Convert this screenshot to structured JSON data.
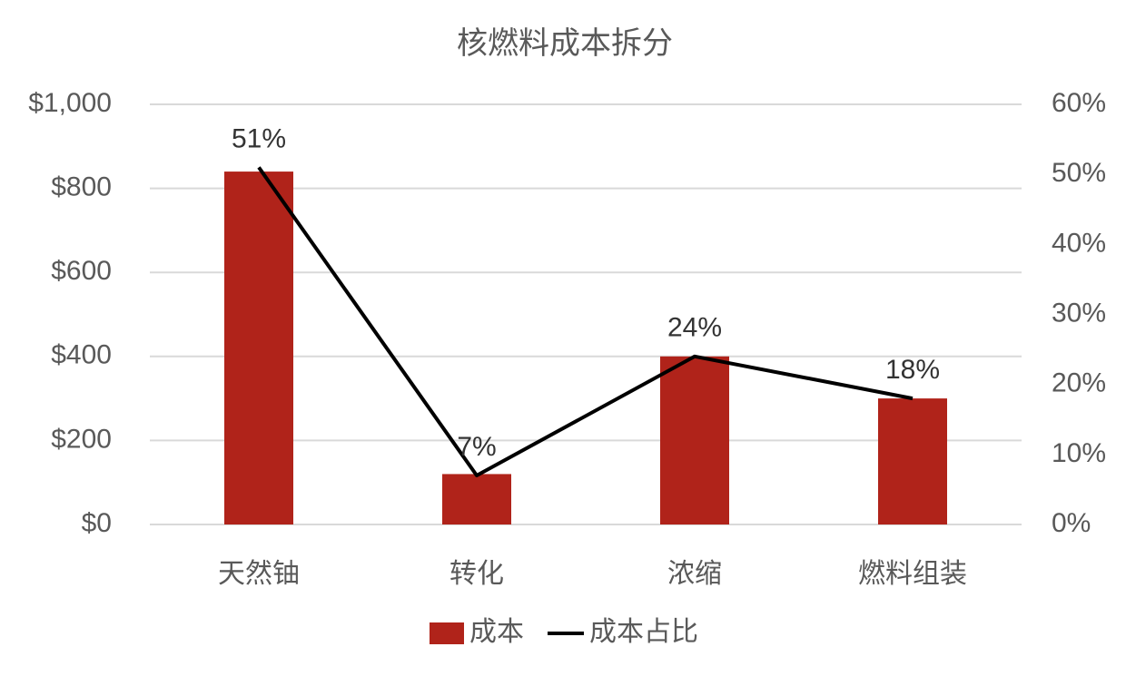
{
  "chart_data": {
    "type": "bar_line",
    "title": "核燃料成本拆分",
    "categories": [
      "天然铀",
      "转化",
      "浓缩",
      "燃料组装"
    ],
    "series": [
      {
        "name": "成本",
        "type": "bar",
        "color": "#b0231a",
        "values": [
          840,
          120,
          400,
          300
        ]
      },
      {
        "name": "成本占比",
        "type": "line",
        "axis": "y2",
        "color": "#000000",
        "values": [
          51,
          7,
          24,
          18
        ],
        "value_labels": [
          "51%",
          "7%",
          "24%",
          "18%"
        ]
      }
    ],
    "ylim": [
      0,
      1000
    ],
    "yticks": [
      {
        "value": 0,
        "label": "$0"
      },
      {
        "value": 200,
        "label": "$200"
      },
      {
        "value": 400,
        "label": "$400"
      },
      {
        "value": 600,
        "label": "$600"
      },
      {
        "value": 800,
        "label": "$800"
      },
      {
        "value": 1000,
        "label": "$1,000"
      }
    ],
    "y2lim": [
      0,
      60
    ],
    "y2ticks": [
      {
        "value": 0,
        "label": "0%"
      },
      {
        "value": 10,
        "label": "10%"
      },
      {
        "value": 20,
        "label": "20%"
      },
      {
        "value": 30,
        "label": "30%"
      },
      {
        "value": 40,
        "label": "40%"
      },
      {
        "value": 50,
        "label": "50%"
      },
      {
        "value": 60,
        "label": "60%"
      }
    ],
    "grid": true,
    "legend": "bottom"
  }
}
